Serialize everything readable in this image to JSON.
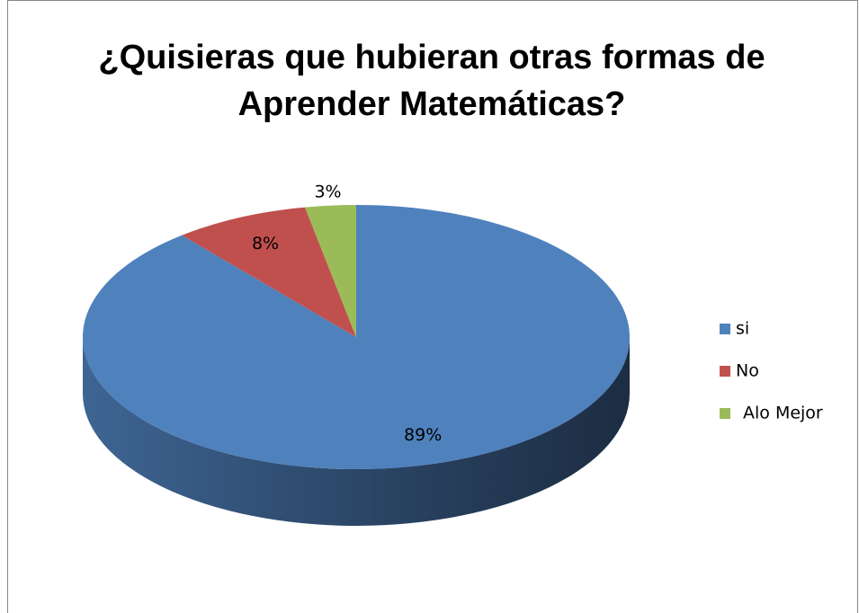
{
  "chart_data": {
    "type": "pie3d",
    "title": "¿Quisieras que hubieran otras formas de Aprender Matemáticas?",
    "categories": [
      "si",
      "No",
      "Alo Mejor"
    ],
    "values": [
      89,
      8,
      3
    ],
    "value_labels": [
      "89%",
      "8%",
      "3%"
    ],
    "colors": [
      "#4f81bd",
      "#c0504d",
      "#9bbb59"
    ],
    "legend": "right"
  }
}
